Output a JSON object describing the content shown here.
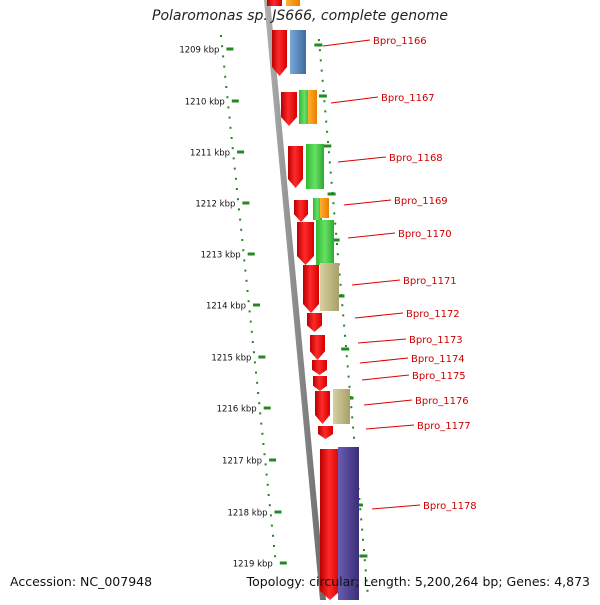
{
  "title": "Polaromonas sp. JS666, complete genome",
  "accession": "Accession: NC_007948",
  "topology": "Topology: circular; Length: 5,200,264 bp; Genes: 4,873",
  "ruler_labels": [
    "1209 kbp",
    "1210 kbp",
    "1211 kbp",
    "1212 kbp",
    "1213 kbp",
    "1214 kbp",
    "1215 kbp",
    "1216 kbp",
    "1217 kbp",
    "1218 kbp",
    "1219 kbp"
  ],
  "gene_labels": [
    "Bpro_1166",
    "Bpro_1167",
    "Bpro_1168",
    "Bpro_1169",
    "Bpro_1170",
    "Bpro_1171",
    "Bpro_1172",
    "Bpro_1173",
    "Bpro_1174",
    "Bpro_1175",
    "Bpro_1176",
    "Bpro_1177",
    "Bpro_1178"
  ],
  "colors": {
    "gene_red": "#ee1111",
    "label_red": "#cc0000",
    "ruler_green": "#228822",
    "backbone_gray": "#888888",
    "blue": "#4a7fb5",
    "green": "#44cc44",
    "orange": "#ff9900",
    "khaki": "#bbb57a",
    "purple": "#4a3c8c"
  }
}
